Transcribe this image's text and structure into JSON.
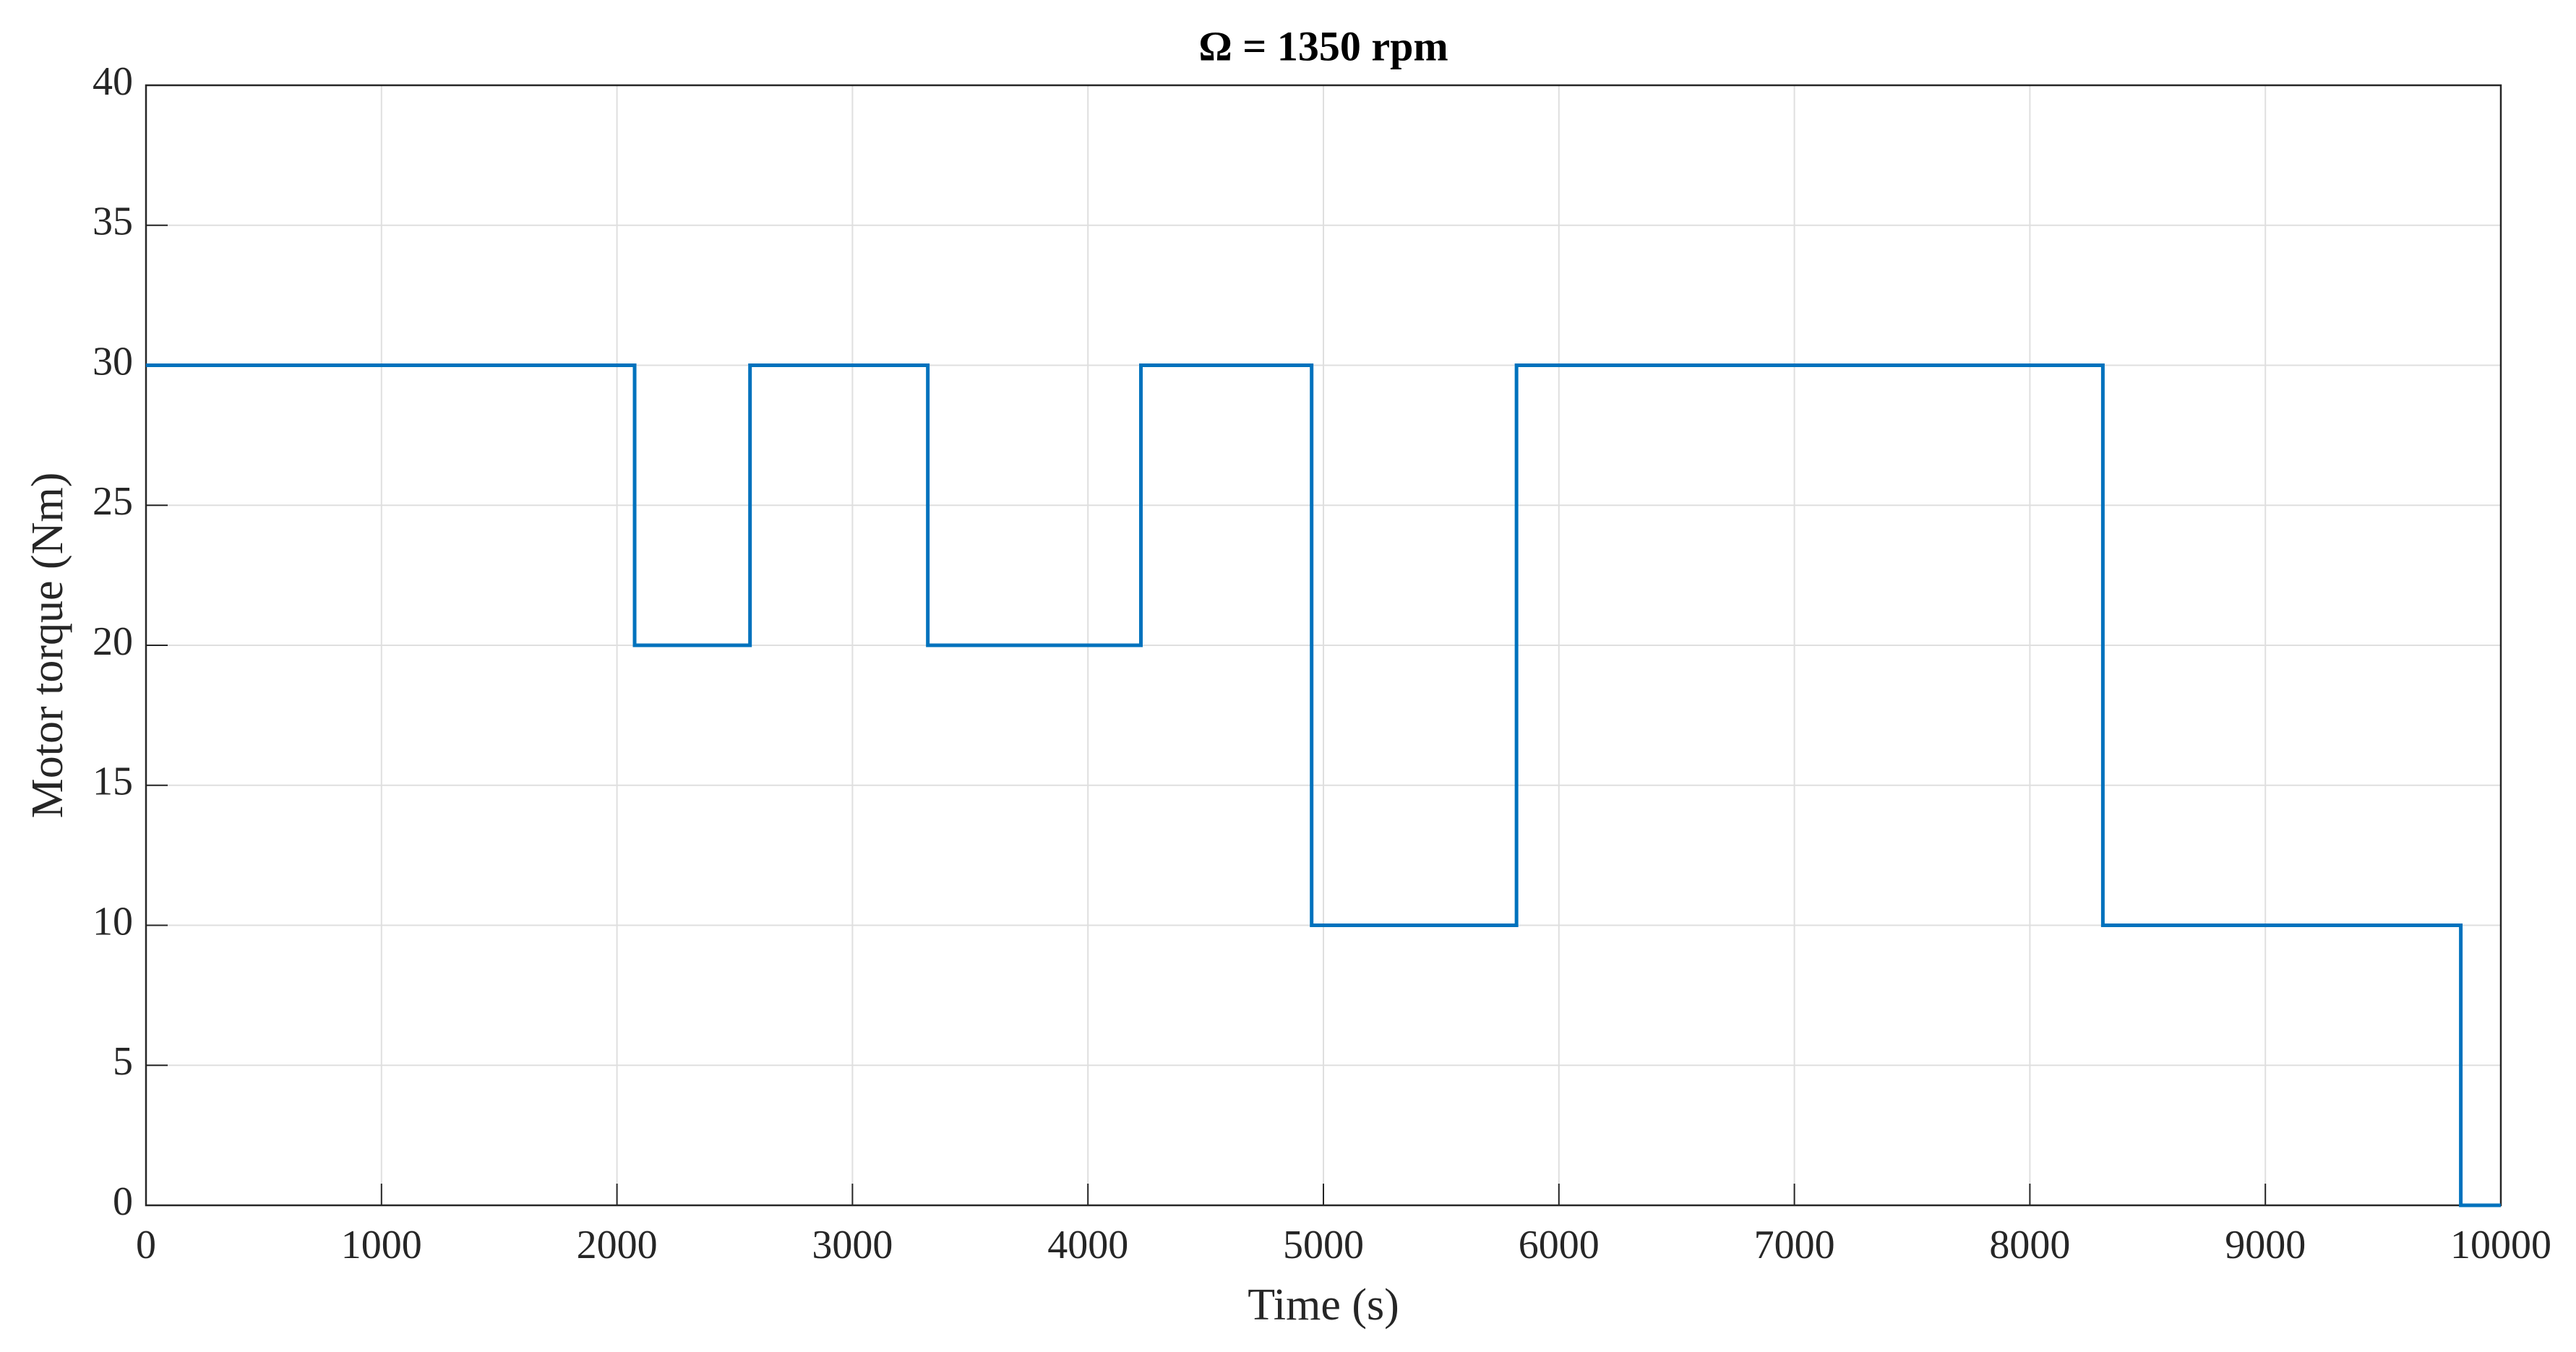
{
  "chart_data": {
    "type": "line",
    "title": "Ω = 1350 rpm",
    "x_label": "Time (s)",
    "y_label": "Motor torque (Nm)",
    "x": [
      0,
      2075,
      2075,
      2565,
      2565,
      3320,
      3320,
      4225,
      4225,
      4950,
      4950,
      5820,
      5820,
      8310,
      8310,
      9830,
      9830,
      10000
    ],
    "values": [
      30,
      30,
      20,
      20,
      30,
      30,
      20,
      20,
      30,
      30,
      10,
      10,
      30,
      30,
      10,
      10,
      0,
      0
    ],
    "color": "#0072bd",
    "xlim": [
      0,
      10000
    ],
    "xticks": [
      0,
      1000,
      2000,
      3000,
      4000,
      5000,
      6000,
      7000,
      8000,
      9000,
      10000
    ],
    "ylim": [
      0,
      40
    ],
    "yticks": [
      0,
      5,
      10,
      15,
      20,
      25,
      30,
      35,
      40
    ],
    "grid": true
  }
}
